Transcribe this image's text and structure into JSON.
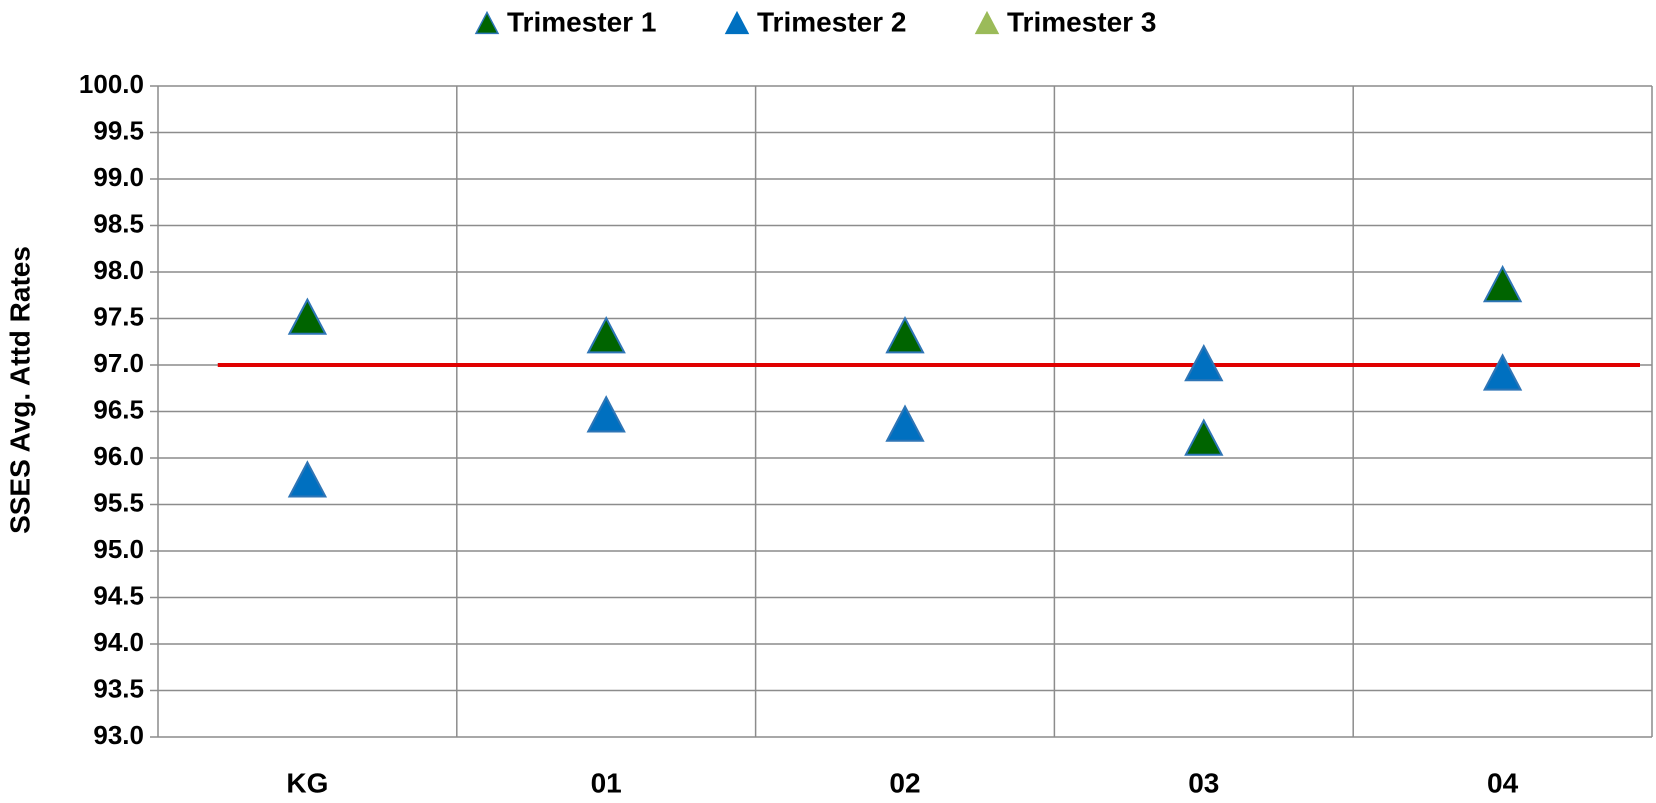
{
  "chart_data": {
    "type": "scatter",
    "y_axis_label": "SSES Avg. Attd Rates",
    "categories": [
      "KG",
      "01",
      "02",
      "03",
      "04"
    ],
    "series": [
      {
        "name": "Trimester 1",
        "color": "#006400",
        "values": [
          97.5,
          97.3,
          97.3,
          96.2,
          97.85
        ]
      },
      {
        "name": "Trimester 2",
        "color": "#0070c0",
        "values": [
          95.75,
          96.45,
          96.35,
          97.0,
          96.9
        ]
      },
      {
        "name": "Trimester 3",
        "color": "#9bbb59",
        "values": [
          null,
          null,
          null,
          null,
          null
        ]
      }
    ],
    "reference_line": {
      "value": 97.0,
      "color": "#e00000"
    },
    "ylim": [
      93,
      100
    ],
    "yticks": [
      {
        "value": 93,
        "label": "93.0"
      },
      {
        "value": 93.5,
        "label": "93.5"
      },
      {
        "value": 94,
        "label": "94.0"
      },
      {
        "value": 94.5,
        "label": "94.5"
      },
      {
        "value": 95,
        "label": "95.0"
      },
      {
        "value": 95.5,
        "label": "95.5"
      },
      {
        "value": 96,
        "label": "96.0"
      },
      {
        "value": 96.5,
        "label": "96.5"
      },
      {
        "value": 97,
        "label": "97.0"
      },
      {
        "value": 97.5,
        "label": "97.5"
      },
      {
        "value": 98,
        "label": "98.0"
      },
      {
        "value": 98.5,
        "label": "98.5"
      },
      {
        "value": 99,
        "label": "99.0"
      },
      {
        "value": 99.5,
        "label": "99.5"
      },
      {
        "value": 100,
        "label": "100.0"
      }
    ],
    "grid": true,
    "legend": "top"
  }
}
